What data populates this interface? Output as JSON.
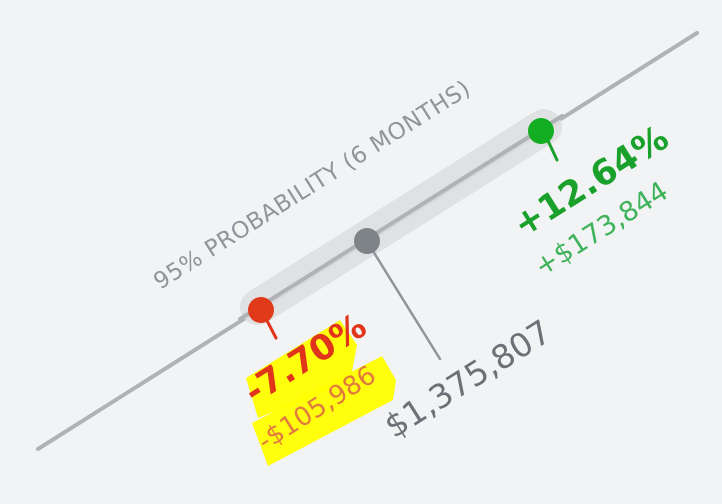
{
  "range_widget": {
    "caption": "95% PROBABILITY (6 MONTHS)",
    "upper": {
      "percent": "+12.64%",
      "value": "+$173,844",
      "color": "#1aa12b"
    },
    "current": {
      "value": "$1,375,807",
      "color": "#7a7f84"
    },
    "lower": {
      "percent": "-7.70%",
      "value": "-$105,986",
      "color": "#e0351b",
      "highlight_color": "#ffff00"
    }
  }
}
